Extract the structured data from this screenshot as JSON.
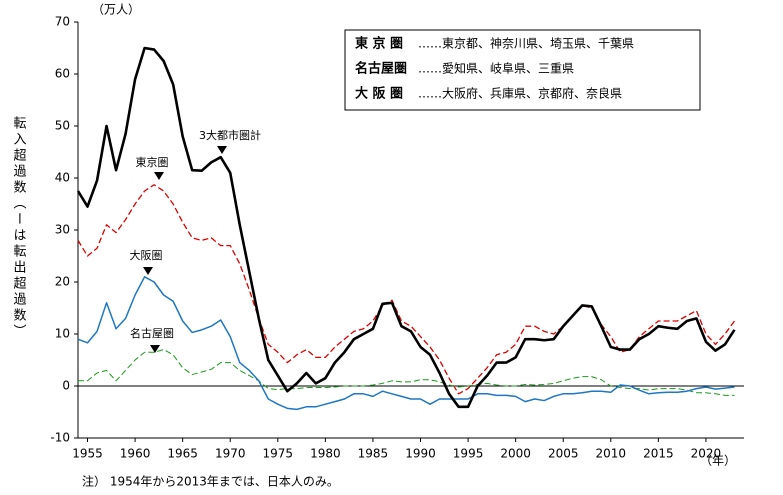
{
  "chart_data": {
    "type": "line",
    "unit_label": "（万人）",
    "y_label": "転入超過数（ーは転出超過数）",
    "x_unit": "（年）",
    "note": "注） 1954年から2013年までは、日本人のみ。",
    "x": [
      1954,
      1955,
      1956,
      1957,
      1958,
      1959,
      1960,
      1961,
      1962,
      1963,
      1964,
      1965,
      1966,
      1967,
      1968,
      1969,
      1970,
      1971,
      1972,
      1973,
      1974,
      1975,
      1976,
      1977,
      1978,
      1979,
      1980,
      1981,
      1982,
      1983,
      1984,
      1985,
      1986,
      1987,
      1988,
      1989,
      1990,
      1991,
      1992,
      1993,
      1994,
      1995,
      1996,
      1997,
      1998,
      1999,
      2000,
      2001,
      2002,
      2003,
      2004,
      2005,
      2006,
      2007,
      2008,
      2009,
      2010,
      2011,
      2012,
      2013,
      2014,
      2015,
      2016,
      2017,
      2018,
      2019,
      2020,
      2021,
      2022,
      2023
    ],
    "xlim": [
      1954,
      2024
    ],
    "xticks": [
      1955,
      1960,
      1965,
      1970,
      1975,
      1980,
      1985,
      1990,
      1995,
      2000,
      2005,
      2010,
      2015,
      2020
    ],
    "ylim": [
      -10,
      70
    ],
    "yticks": [
      -10,
      0,
      10,
      20,
      30,
      40,
      50,
      60,
      70
    ],
    "series": [
      {
        "name": "東 京 圏",
        "desc": "……東京都、神奈川県、埼玉県、千葉県",
        "color": "#e00000",
        "dash": true,
        "width": 1.3,
        "values": [
          28,
          25,
          26.5,
          31,
          29.5,
          32,
          35,
          37.5,
          38.7,
          37.5,
          35,
          31.5,
          28.5,
          28,
          28.5,
          27,
          27,
          23.5,
          18.5,
          13,
          8,
          6.5,
          4.5,
          6,
          7,
          5.5,
          5.5,
          7.5,
          9,
          10.5,
          11,
          12.5,
          15.5,
          16.5,
          12.5,
          11.5,
          9.5,
          7.5,
          5,
          1.5,
          -1.5,
          -0.5,
          1.5,
          3.5,
          6,
          6.5,
          8,
          11.5,
          11.5,
          10.5,
          10,
          11.5,
          13.5,
          15.5,
          15,
          11.8,
          9.5,
          6.5,
          7,
          9.5,
          11,
          12.5,
          12.5,
          12.5,
          13.5,
          14.5,
          10,
          8,
          10,
          12.5
        ]
      },
      {
        "name": "名古屋圏",
        "desc": "……愛知県、岐阜県、三重県",
        "color": "#1a9a1a",
        "dash": true,
        "width": 1,
        "values": [
          1,
          1,
          2.5,
          3,
          1,
          3,
          5,
          6.5,
          6.5,
          7,
          6,
          3.5,
          2.2,
          2.7,
          3.2,
          4.5,
          4.5,
          3,
          2,
          1,
          -0.5,
          -0.7,
          -0.5,
          -0.5,
          -0.3,
          -0.3,
          -0.3,
          -0.2,
          0,
          0,
          0,
          0.2,
          0.5,
          1,
          0.8,
          0.8,
          1.2,
          1.2,
          0.8,
          0.2,
          -0.2,
          0,
          0.3,
          0.5,
          0.2,
          0,
          0,
          0.3,
          0.2,
          0.3,
          0.5,
          1,
          1.5,
          1.8,
          1.8,
          1.2,
          0,
          -0.3,
          -0.5,
          -0.5,
          -0.8,
          -0.5,
          -0.5,
          -0.5,
          -0.8,
          -1.3,
          -1.3,
          -1.5,
          -1.8,
          -1.8
        ]
      },
      {
        "name": "大 阪 圏",
        "desc": "……大阪府、兵庫県、京都府、奈良県",
        "color": "#1f77c4",
        "dash": false,
        "width": 1.5,
        "values": [
          9,
          8.3,
          10.5,
          16,
          11,
          13,
          17.5,
          21,
          20,
          17.5,
          16.3,
          12.5,
          10.3,
          10.8,
          11.5,
          12.7,
          9.5,
          4.5,
          3,
          1,
          -2.5,
          -3.5,
          -4.3,
          -4.5,
          -4,
          -4,
          -3.5,
          -3,
          -2.5,
          -1.5,
          -1.5,
          -2,
          -1,
          -1.5,
          -2,
          -2.5,
          -2.5,
          -3.5,
          -2.5,
          -2.5,
          -2.5,
          -2.5,
          -1.5,
          -1.5,
          -1.8,
          -1.8,
          -2,
          -3,
          -2.5,
          -2.8,
          -2,
          -1.5,
          -1.5,
          -1.3,
          -1,
          -1,
          -1.2,
          0.2,
          0,
          -0.8,
          -1.5,
          -1.3,
          -1.2,
          -1.2,
          -1,
          -0.5,
          -0.2,
          -0.6,
          -0.4,
          -0.2
        ]
      },
      {
        "name": "3大都市圏計",
        "color": "#000000",
        "dash": false,
        "width": 2.6,
        "values": [
          37.5,
          34.5,
          39.5,
          50,
          41.5,
          48.5,
          59,
          65,
          64.7,
          62.5,
          58,
          48,
          41.5,
          41.4,
          43,
          44,
          41,
          31,
          22,
          13,
          5,
          2,
          -1,
          0.5,
          2.5,
          0.5,
          1.5,
          4.5,
          6.5,
          9,
          10,
          11,
          15.8,
          16,
          11.5,
          10.5,
          7.5,
          6,
          2.5,
          -1.5,
          -4,
          -4,
          0,
          2,
          4.5,
          4.5,
          5.5,
          9,
          9,
          8.8,
          9,
          11.5,
          13.5,
          15.5,
          15.3,
          11.5,
          7.5,
          7,
          7,
          9,
          10,
          11.5,
          11.2,
          11,
          12.5,
          13,
          8.5,
          6.8,
          8,
          10.8
        ]
      }
    ],
    "annotations": [
      "3大都市圏計",
      "東京圏",
      "大阪圏",
      "名古屋圏"
    ]
  }
}
